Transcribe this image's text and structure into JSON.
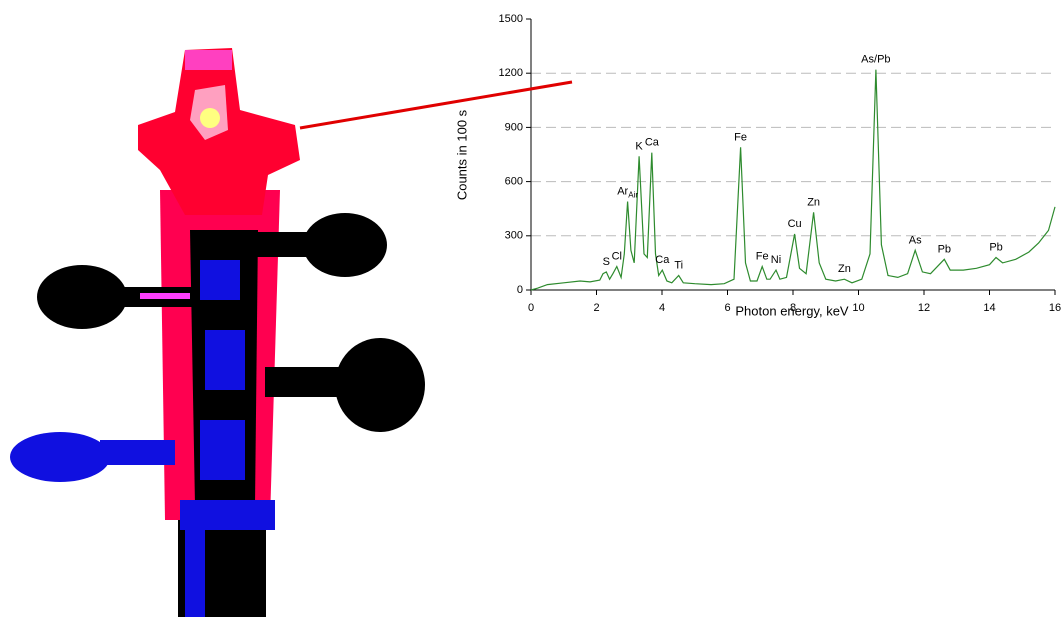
{
  "chart_data": {
    "type": "line",
    "xlabel": "Photon energy, keV",
    "ylabel": "Counts in 100 s",
    "xlim": [
      0,
      16
    ],
    "xticks": [
      0,
      2,
      4,
      6,
      8,
      10,
      12,
      14,
      16
    ],
    "ylim": [
      0,
      1500
    ],
    "yticks": [
      0,
      300,
      600,
      900,
      1200,
      1500
    ],
    "grid": true,
    "series": [
      {
        "color": "#2e8b2e",
        "x": [
          0,
          0.2,
          0.5,
          1,
          1.5,
          1.8,
          2.1,
          2.2,
          2.3,
          2.4,
          2.5,
          2.62,
          2.75,
          2.85,
          2.95,
          3.05,
          3.15,
          3.3,
          3.45,
          3.55,
          3.69,
          3.8,
          3.9,
          4.01,
          4.15,
          4.3,
          4.51,
          4.65,
          5,
          5.5,
          5.9,
          6.2,
          6.4,
          6.55,
          6.7,
          6.9,
          7.06,
          7.2,
          7.3,
          7.48,
          7.6,
          7.8,
          8.05,
          8.2,
          8.4,
          8.63,
          8.8,
          9,
          9.3,
          9.57,
          9.8,
          10.1,
          10.35,
          10.53,
          10.7,
          10.9,
          11.2,
          11.5,
          11.73,
          11.95,
          12.2,
          12.62,
          12.8,
          13.2,
          13.6,
          14,
          14.2,
          14.4,
          14.8,
          15.2,
          15.5,
          15.8,
          16
        ],
        "values": [
          0,
          10,
          30,
          40,
          50,
          45,
          55,
          90,
          100,
          60,
          90,
          130,
          70,
          200,
          490,
          220,
          150,
          740,
          200,
          180,
          760,
          200,
          80,
          110,
          50,
          40,
          80,
          40,
          35,
          30,
          35,
          60,
          790,
          150,
          50,
          50,
          130,
          60,
          60,
          110,
          60,
          70,
          310,
          120,
          90,
          430,
          150,
          60,
          50,
          60,
          40,
          60,
          200,
          1220,
          250,
          80,
          70,
          90,
          220,
          100,
          90,
          170,
          110,
          110,
          120,
          140,
          180,
          150,
          170,
          210,
          260,
          330,
          460
        ]
      }
    ],
    "annotations": [
      {
        "text": "S",
        "x": 2.3,
        "y": 100
      },
      {
        "text": "Cl",
        "x": 2.62,
        "y": 130
      },
      {
        "text": "Ar",
        "sub": "Air",
        "x": 2.95,
        "y": 490
      },
      {
        "text": "K",
        "x": 3.3,
        "y": 740
      },
      {
        "text": "Ca",
        "x": 3.69,
        "y": 760
      },
      {
        "text": "Ca",
        "x": 4.01,
        "y": 110
      },
      {
        "text": "Ti",
        "x": 4.51,
        "y": 80
      },
      {
        "text": "Fe",
        "x": 6.4,
        "y": 790
      },
      {
        "text": "Fe",
        "x": 7.06,
        "y": 130
      },
      {
        "text": "Ni",
        "x": 7.48,
        "y": 110
      },
      {
        "text": "Cu",
        "x": 8.05,
        "y": 310
      },
      {
        "text": "Zn",
        "x": 8.63,
        "y": 430
      },
      {
        "text": "Zn",
        "x": 9.57,
        "y": 60
      },
      {
        "text": "As/Pb",
        "x": 10.53,
        "y": 1220
      },
      {
        "text": "As",
        "x": 11.73,
        "y": 220
      },
      {
        "text": "Pb",
        "x": 12.62,
        "y": 170
      },
      {
        "text": "Pb",
        "x": 14.2,
        "y": 180
      }
    ]
  }
}
